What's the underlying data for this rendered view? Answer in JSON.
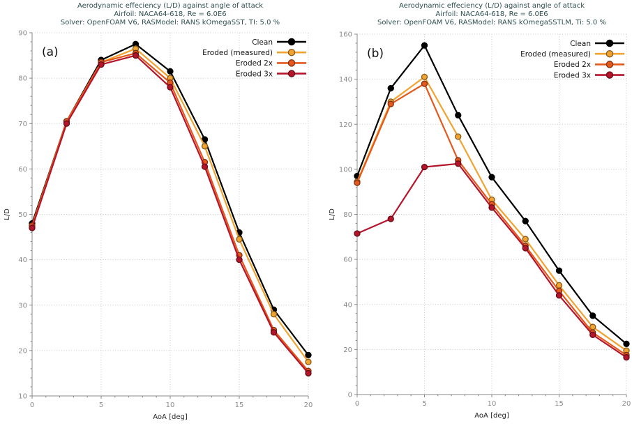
{
  "colors": {
    "title": "#2F4F4F",
    "ticks": "#8a8a8a",
    "axis": "#262626",
    "grid": "#c8c8c8",
    "spine": "#888888",
    "legend_text": "#111111"
  },
  "chart_data": [
    {
      "type": "line",
      "panel_label": "(a)",
      "title": "Aerodynamic effeciency (L/D) against angle of attack",
      "subtitle": "Airfoil: NACA64-618, Re = 6.0E6",
      "subtitle2": "Solver: OpenFOAM V6, RASModel: RANS kOmegaSST, TI: 5.0 %",
      "xlabel": "AoA [deg]",
      "ylabel": "L/D",
      "grid": "dotted",
      "legend_position": "upper right",
      "xlim": [
        0,
        20
      ],
      "ylim": [
        10,
        90
      ],
      "xticks": [
        0,
        5,
        10,
        15,
        20
      ],
      "yticks": [
        10,
        20,
        30,
        40,
        50,
        60,
        70,
        80,
        90
      ],
      "x": [
        0,
        2.5,
        5,
        7.5,
        10,
        12.5,
        15,
        17.5,
        20
      ],
      "series": [
        {
          "name": "Clean",
          "color": "#000000",
          "values": [
            48,
            70.5,
            84,
            87.5,
            81.5,
            66.5,
            46,
            29,
            19
          ]
        },
        {
          "name": "Eroded (measured)",
          "color": "#F0A330",
          "values": [
            47.5,
            70.5,
            83.5,
            86.5,
            80,
            65,
            44.5,
            28,
            17.5
          ]
        },
        {
          "name": "Eroded 2x",
          "color": "#E4581C",
          "values": [
            47.5,
            70.5,
            83.5,
            85.5,
            79,
            61.5,
            41,
            24.5,
            15.5
          ]
        },
        {
          "name": "Eroded 3x",
          "color": "#B5152B",
          "values": [
            47,
            70,
            83,
            85,
            78,
            60.5,
            40,
            24,
            15
          ]
        }
      ]
    },
    {
      "type": "line",
      "panel_label": "(b)",
      "title": "Aerodynamic effeciency (L/D) against angle of attack",
      "subtitle": "Airfoil: NACA64-618, Re = 6.0E6",
      "subtitle2": "Solver: OpenFOAM V6, RASModel: RANS kOmegaSSTLM, Ti: 5.0 %",
      "xlabel": "AoA [deg]",
      "ylabel": "L/D",
      "grid": "dotted",
      "legend_position": "upper right",
      "xlim": [
        0,
        20
      ],
      "ylim": [
        0,
        160
      ],
      "xticks": [
        0,
        5,
        10,
        15,
        20
      ],
      "yticks": [
        0,
        20,
        40,
        60,
        80,
        100,
        120,
        140,
        160
      ],
      "x": [
        0,
        2.5,
        5,
        7.5,
        10,
        12.5,
        15,
        17.5,
        20
      ],
      "series": [
        {
          "name": "Clean",
          "color": "#000000",
          "values": [
            97,
            136,
            155,
            124,
            96.5,
            77,
            55,
            35,
            22.5
          ]
        },
        {
          "name": "Eroded (measured)",
          "color": "#F0A330",
          "values": [
            94.5,
            130,
            141,
            114.5,
            86.5,
            69,
            48.5,
            30,
            19.5
          ]
        },
        {
          "name": "Eroded 2x",
          "color": "#E4581C",
          "values": [
            94,
            129,
            138,
            104,
            84.5,
            66,
            46,
            27.5,
            17.5
          ]
        },
        {
          "name": "Eroded 3x",
          "color": "#B5152B",
          "values": [
            71.5,
            78,
            101,
            102.5,
            83,
            65,
            44,
            26.5,
            16.5
          ]
        }
      ]
    }
  ]
}
